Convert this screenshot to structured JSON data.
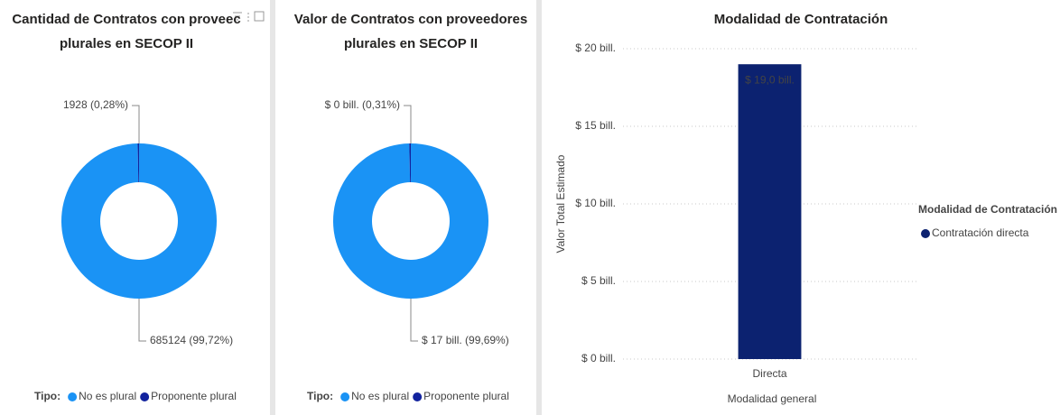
{
  "chart_data": [
    {
      "type": "donut",
      "title_lines": [
        "Cantidad de Contratos con proveec",
        "plurales en SECOP II"
      ],
      "categories": [
        "No es plural",
        "Proponente plural"
      ],
      "values": [
        685124,
        1928
      ],
      "value_labels": [
        "685124 (99,72%)",
        "1928 (0,28%)"
      ],
      "colors": [
        "#1a93f5",
        "#12239e"
      ],
      "legend_title": "Tipo:"
    },
    {
      "type": "donut",
      "title_lines": [
        "Valor de Contratos con proveedores",
        "plurales en SECOP II"
      ],
      "categories": [
        "No es plural",
        "Proponente plural"
      ],
      "values": [
        17,
        0.053
      ],
      "value_labels": [
        "$ 17 bill. (99,69%)",
        "$ 0 bill. (0,31%)"
      ],
      "colors": [
        "#1a93f5",
        "#12239e"
      ],
      "legend_title": "Tipo:"
    },
    {
      "type": "bar",
      "title": "Modalidad de Contratación",
      "categories": [
        "Directa"
      ],
      "series": [
        {
          "name": "Contratación directa",
          "color": "#0c2270",
          "values": [
            19.0
          ],
          "value_labels": [
            "$ 19,0 bill."
          ]
        }
      ],
      "ylim": [
        0,
        20
      ],
      "yticks": [
        {
          "value": 0,
          "label": "$ 0 bill."
        },
        {
          "value": 5,
          "label": "$ 5 bill."
        },
        {
          "value": 10,
          "label": "$ 10 bill."
        },
        {
          "value": 15,
          "label": "$ 15 bill."
        },
        {
          "value": 20,
          "label": "$ 20 bill."
        }
      ],
      "grid": true,
      "ylabel": "Valor Total Estimado",
      "xlabel": "Modalidad general",
      "legend_title": "Modalidad de Contratación",
      "legend": "right"
    }
  ]
}
